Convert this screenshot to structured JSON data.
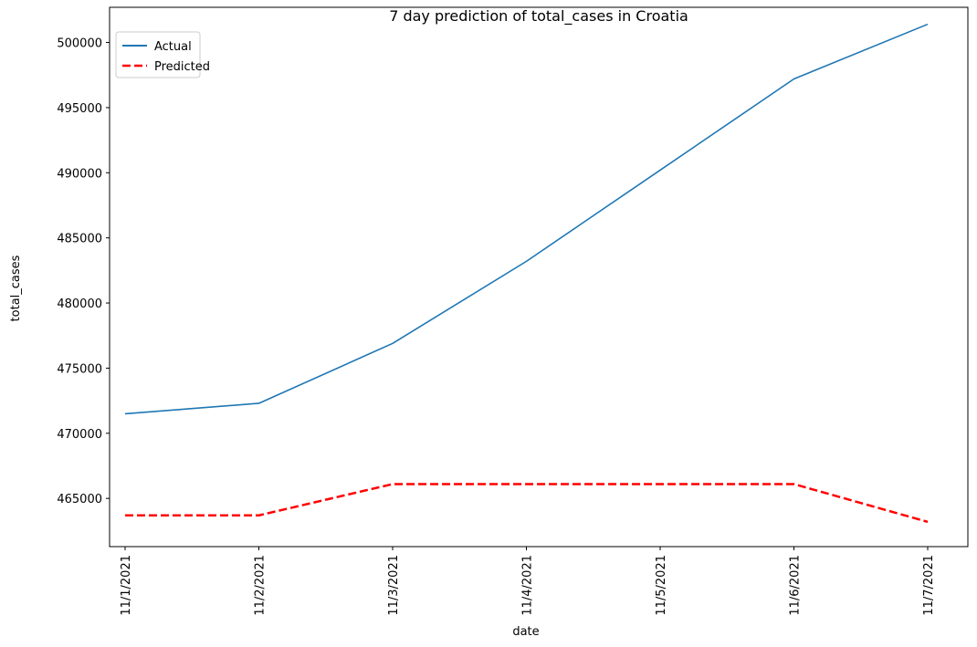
{
  "chart_data": {
    "type": "line",
    "title": "7 day prediction of total_cases in Croatia",
    "xlabel": "date",
    "ylabel": "total_cases",
    "categories": [
      "11/1/2021",
      "11/2/2021",
      "11/3/2021",
      "11/4/2021",
      "11/5/2021",
      "11/6/2021",
      "11/7/2021"
    ],
    "ylim": [
      461300,
      502700
    ],
    "yticks": [
      465000,
      470000,
      475000,
      480000,
      485000,
      490000,
      495000,
      500000
    ],
    "ytick_labels": [
      "465000",
      "470000",
      "475000",
      "480000",
      "485000",
      "490000",
      "495000",
      "500000"
    ],
    "grid": false,
    "legend_position": "top-left",
    "series": [
      {
        "name": "Actual",
        "color": "#1f77b4",
        "style": "solid",
        "values": [
          471500,
          472300,
          476900,
          483200,
          490200,
          497200,
          501400
        ]
      },
      {
        "name": "Predicted",
        "color": "#ff0000",
        "style": "dashed",
        "values": [
          463700,
          463700,
          466100,
          466100,
          466100,
          466100,
          463200
        ]
      }
    ]
  }
}
